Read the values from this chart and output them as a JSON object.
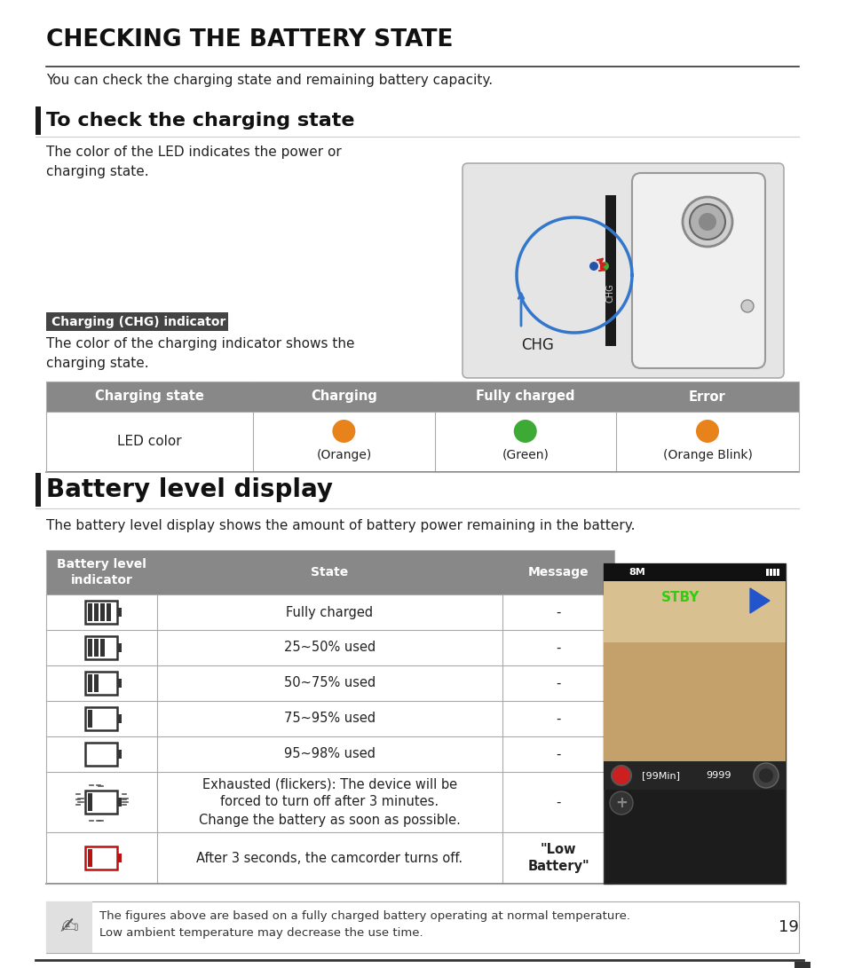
{
  "title": "CHECKING THE BATTERY STATE",
  "subtitle": "You can check the charging state and remaining battery capacity.",
  "section1_title": "To check the charging state",
  "section1_text": "The color of the LED indicates the power or\ncharging state.",
  "chg_label": "Charging (CHG) indicator",
  "chg_text": "The color of the charging indicator shows the\ncharging state.",
  "table1_headers": [
    "Charging state",
    "Charging",
    "Fully charged",
    "Error"
  ],
  "table1_row": "LED color",
  "table1_colors": [
    "#E8821A",
    "#3DAA35",
    "#E8821A"
  ],
  "table1_labels": [
    "(Orange)",
    "(Green)",
    "(Orange Blink)"
  ],
  "section2_title": "Battery level display",
  "section2_text": "The battery level display shows the amount of battery power remaining in the battery.",
  "table2_headers": [
    "Battery level\nindicator",
    "State",
    "Message"
  ],
  "table2_states": [
    "Fully charged",
    "25~50% used",
    "50~75% used",
    "75~95% used",
    "95~98% used",
    "Exhausted (flickers): The device will be\nforced to turn off after 3 minutes.\nChange the battery as soon as possible.",
    "After 3 seconds, the camcorder turns off."
  ],
  "table2_messages": [
    "-",
    "-",
    "-",
    "-",
    "-",
    "-",
    "\"Low\nBattery\""
  ],
  "note_text": "The figures above are based on a fully charged battery operating at normal temperature.\nLow ambient temperature may decrease the use time.",
  "page_number": "19",
  "bg_color": "#ffffff",
  "header_bg": "#888888",
  "header_fg": "#ffffff",
  "table_border": "#aaaaaa",
  "dark_border": "#333333"
}
